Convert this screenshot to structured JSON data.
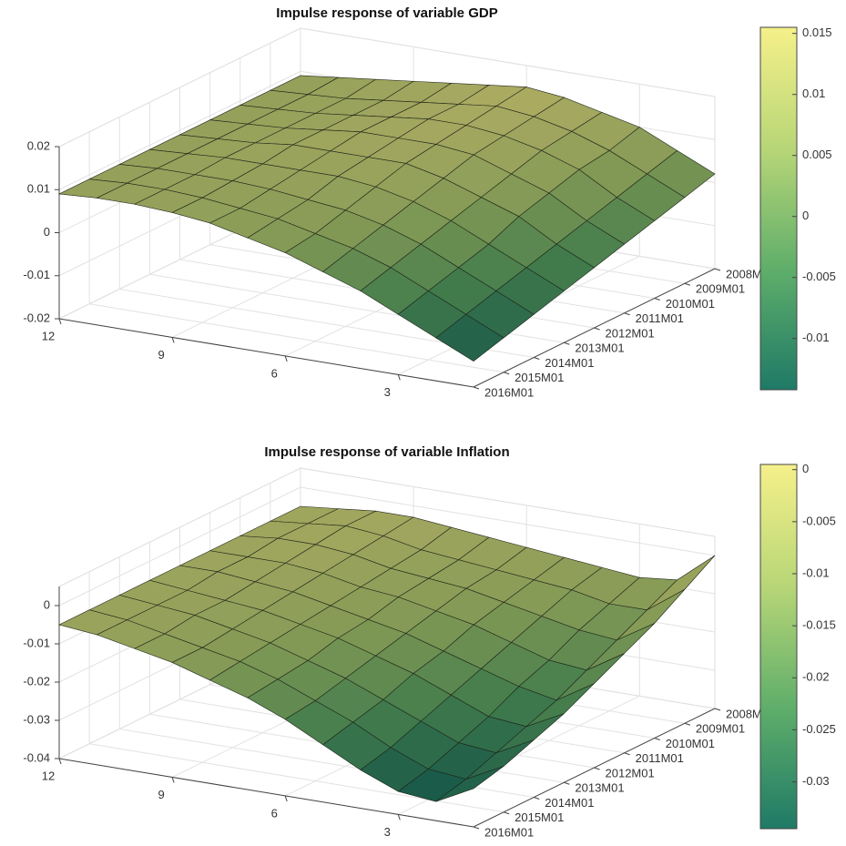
{
  "chart_data": [
    {
      "type": "surface",
      "title": "Impulse response of variable GDP",
      "x": [
        1,
        2,
        3,
        4,
        5,
        6,
        7,
        8,
        9,
        10,
        11,
        12
      ],
      "y": [
        "2008M01",
        "2009M01",
        "2010M01",
        "2011M01",
        "2012M01",
        "2013M01",
        "2014M01",
        "2015M01",
        "2016M01"
      ],
      "z": [
        [
          0.002,
          0.006,
          0.01,
          0.012,
          0.014,
          0.015,
          0.014,
          0.013,
          0.012,
          0.011,
          0.01,
          0.009
        ],
        [
          0.0,
          0.004,
          0.008,
          0.011,
          0.013,
          0.014,
          0.013,
          0.012,
          0.011,
          0.01,
          0.0095,
          0.009
        ],
        [
          -0.002,
          0.002,
          0.007,
          0.01,
          0.012,
          0.013,
          0.013,
          0.012,
          0.011,
          0.01,
          0.0095,
          0.009
        ],
        [
          -0.004,
          0.0,
          0.005,
          0.008,
          0.011,
          0.012,
          0.012,
          0.012,
          0.011,
          0.01,
          0.0095,
          0.009
        ],
        [
          -0.006,
          -0.002,
          0.003,
          0.006,
          0.009,
          0.011,
          0.011,
          0.011,
          0.011,
          0.01,
          0.0095,
          0.009
        ],
        [
          -0.008,
          -0.004,
          0.0,
          0.004,
          0.007,
          0.009,
          0.01,
          0.01,
          0.01,
          0.01,
          0.0095,
          0.009
        ],
        [
          -0.01,
          -0.006,
          -0.002,
          0.002,
          0.005,
          0.007,
          0.008,
          0.009,
          0.0095,
          0.0095,
          0.0095,
          0.009
        ],
        [
          -0.012,
          -0.008,
          -0.004,
          0.0,
          0.003,
          0.005,
          0.007,
          0.008,
          0.009,
          0.0095,
          0.0095,
          0.009
        ],
        [
          -0.014,
          -0.01,
          -0.006,
          -0.002,
          0.001,
          0.004,
          0.006,
          0.008,
          0.009,
          0.0095,
          0.0095,
          0.009
        ]
      ],
      "xlim": [
        1,
        12
      ],
      "xticks": [
        3,
        6,
        9,
        12
      ],
      "zlim": [
        -0.02,
        0.02
      ],
      "zticks": [
        -0.02,
        -0.01,
        0,
        0.01,
        0.02
      ],
      "clim": [
        -0.0142,
        0.0155
      ],
      "cticks": [
        -0.01,
        -0.005,
        0,
        0.005,
        0.01,
        0.015
      ],
      "colormap": [
        "#1f7a66",
        "#5fae6a",
        "#b8d677",
        "#f5f08a"
      ],
      "grid": true
    },
    {
      "type": "surface",
      "title": "Impulse response of variable Inflation",
      "x": [
        1,
        2,
        3,
        4,
        5,
        6,
        7,
        8,
        9,
        10,
        11,
        12
      ],
      "y": [
        "2008M01",
        "2009M01",
        "2010M01",
        "2011M01",
        "2012M01",
        "2013M01",
        "2014M01",
        "2015M01",
        "2016M01"
      ],
      "z": [
        [
          0.0,
          -0.008,
          -0.009,
          -0.008,
          -0.007,
          -0.006,
          -0.005,
          -0.004,
          -0.003,
          -0.003,
          -0.004,
          -0.005
        ],
        [
          -0.005,
          -0.012,
          -0.012,
          -0.01,
          -0.009,
          -0.008,
          -0.007,
          -0.006,
          -0.004,
          -0.003,
          -0.004,
          -0.005
        ],
        [
          -0.01,
          -0.016,
          -0.015,
          -0.013,
          -0.011,
          -0.009,
          -0.008,
          -0.007,
          -0.005,
          -0.004,
          -0.004,
          -0.005
        ],
        [
          -0.014,
          -0.02,
          -0.019,
          -0.016,
          -0.013,
          -0.011,
          -0.009,
          -0.008,
          -0.006,
          -0.005,
          -0.005,
          -0.005
        ],
        [
          -0.018,
          -0.024,
          -0.022,
          -0.019,
          -0.016,
          -0.013,
          -0.011,
          -0.009,
          -0.007,
          -0.006,
          -0.005,
          -0.005
        ],
        [
          -0.022,
          -0.027,
          -0.026,
          -0.022,
          -0.018,
          -0.015,
          -0.012,
          -0.01,
          -0.008,
          -0.007,
          -0.006,
          -0.005
        ],
        [
          -0.025,
          -0.03,
          -0.029,
          -0.025,
          -0.021,
          -0.017,
          -0.014,
          -0.011,
          -0.009,
          -0.007,
          -0.006,
          -0.005
        ],
        [
          -0.028,
          -0.033,
          -0.032,
          -0.028,
          -0.023,
          -0.019,
          -0.015,
          -0.012,
          -0.01,
          -0.008,
          -0.006,
          -0.005
        ],
        [
          -0.03,
          -0.035,
          -0.034,
          -0.03,
          -0.025,
          -0.02,
          -0.016,
          -0.013,
          -0.01,
          -0.008,
          -0.006,
          -0.005
        ]
      ],
      "xlim": [
        1,
        12
      ],
      "xticks": [
        3,
        6,
        9,
        12
      ],
      "zlim": [
        -0.04,
        0.005
      ],
      "zticks": [
        -0.04,
        -0.03,
        -0.02,
        -0.01,
        0
      ],
      "clim": [
        -0.0345,
        0.0005
      ],
      "cticks": [
        -0.03,
        -0.025,
        -0.02,
        -0.015,
        -0.01,
        -0.005,
        0
      ],
      "colormap": [
        "#1f7a66",
        "#5fae6a",
        "#b8d677",
        "#f5f08a"
      ],
      "grid": true
    }
  ]
}
